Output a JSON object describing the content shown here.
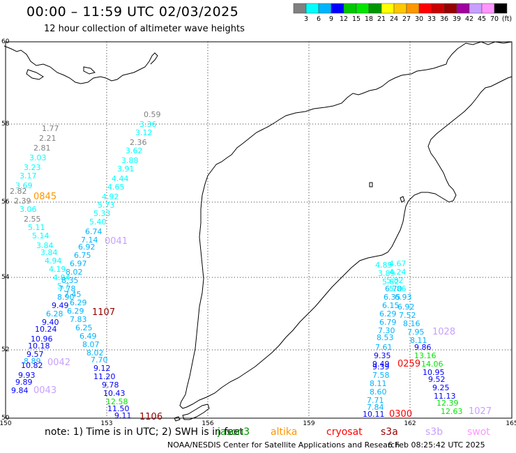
{
  "title": "00:00 – 11:59 UTC 02/03/2025",
  "subtitle": "12 hour collection of altimeter wave heights",
  "legend": {
    "values": [
      "3",
      "6",
      "9",
      "12",
      "15",
      "18",
      "21",
      "24",
      "27",
      "30",
      "33",
      "36",
      "39",
      "42",
      "45",
      "70",
      "(ft)"
    ],
    "colors": [
      "#808080",
      "#00ffff",
      "#00b4ff",
      "#0000ff",
      "#00c800",
      "#00e600",
      "#009600",
      "#ffff00",
      "#ffc800",
      "#ff9600",
      "#ff0000",
      "#c80000",
      "#960000",
      "#a000a0",
      "#c8a0ff",
      "#ff96ff",
      "#000000"
    ]
  },
  "axes": {
    "lon_labels": [
      "150",
      "153",
      "156",
      "159",
      "162",
      "165"
    ],
    "lat_labels": [
      "60",
      "58",
      "56",
      "54",
      "52",
      "50"
    ]
  },
  "note": {
    "prefix": "note:  1) Time is in UTC;  2) SWH is in feet",
    "satellites": [
      {
        "name": "jason3",
        "color": "#009600"
      },
      {
        "name": "altika",
        "color": "#ff9600"
      },
      {
        "name": "cryosat",
        "color": "#ff0000"
      },
      {
        "name": "s3a",
        "color": "#960000"
      },
      {
        "name": "s3b",
        "color": "#c8a0ff"
      },
      {
        "name": "swot",
        "color": "#ff96ff"
      }
    ]
  },
  "credit_left": "NOAA/NESDIS Center for Satellite Applications and Research",
  "credit_right": "6 Feb 08:25:42 UTC 2025",
  "pass_times": [
    {
      "label": "0845",
      "color": "#ff9600"
    },
    {
      "label": "0041",
      "color": "#c8a0ff"
    },
    {
      "label": "1107",
      "color": "#960000"
    },
    {
      "label": "0042",
      "color": "#c8a0ff"
    },
    {
      "label": "0043",
      "color": "#c8a0ff"
    },
    {
      "label": "1106",
      "color": "#960000"
    },
    {
      "label": "1028",
      "color": "#c8a0ff"
    },
    {
      "label": "0259",
      "color": "#ff0000"
    },
    {
      "label": "0300",
      "color": "#ff0000"
    },
    {
      "label": "1027",
      "color": "#c8a0ff"
    }
  ],
  "tracks": [
    {
      "id": "track-a",
      "points": [
        {
          "v": "1.77",
          "c": "#808080"
        },
        {
          "v": "2.21",
          "c": "#808080"
        },
        {
          "v": "2.81",
          "c": "#808080"
        },
        {
          "v": "3.03",
          "c": "#00ffff"
        },
        {
          "v": "3.23",
          "c": "#00ffff"
        },
        {
          "v": "3.17",
          "c": "#00ffff"
        },
        {
          "v": "3.69",
          "c": "#00ffff"
        },
        {
          "v": "2.82",
          "c": "#808080"
        },
        {
          "v": "2.39",
          "c": "#808080"
        },
        {
          "v": "3.06",
          "c": "#00ffff"
        },
        {
          "v": "2.55",
          "c": "#808080"
        },
        {
          "v": "5.11",
          "c": "#00ffff"
        },
        {
          "v": "5.14",
          "c": "#00ffff"
        },
        {
          "v": "3.84",
          "c": "#00ffff"
        },
        {
          "v": "3.84",
          "c": "#00ffff"
        },
        {
          "v": "4.94",
          "c": "#00ffff"
        },
        {
          "v": "4.19",
          "c": "#00ffff"
        },
        {
          "v": "4.84",
          "c": "#00ffff"
        },
        {
          "v": "5.7",
          "c": "#00ffff"
        },
        {
          "v": "7.78",
          "c": "#00b4ff"
        },
        {
          "v": "8.90",
          "c": "#00b4ff"
        },
        {
          "v": "9.49",
          "c": "#0000ff"
        },
        {
          "v": "6.28",
          "c": "#00b4ff"
        },
        {
          "v": "9.40",
          "c": "#0000ff"
        },
        {
          "v": "10.24",
          "c": "#0000ff"
        },
        {
          "v": "10.96",
          "c": "#0000ff"
        },
        {
          "v": "10.18",
          "c": "#0000ff"
        },
        {
          "v": "9.57",
          "c": "#0000ff"
        },
        {
          "v": "8.89",
          "c": "#00b4ff"
        },
        {
          "v": "10.82",
          "c": "#0000ff"
        },
        {
          "v": "9.93",
          "c": "#0000ff"
        },
        {
          "v": "9.89",
          "c": "#0000ff"
        },
        {
          "v": "9.84",
          "c": "#0000ff"
        }
      ]
    },
    {
      "id": "track-b",
      "points": [
        {
          "v": "0.59",
          "c": "#808080"
        },
        {
          "v": "3.36",
          "c": "#00ffff"
        },
        {
          "v": "3.12",
          "c": "#00ffff"
        },
        {
          "v": "2.36",
          "c": "#808080"
        },
        {
          "v": "3.62",
          "c": "#00ffff"
        },
        {
          "v": "3.88",
          "c": "#00ffff"
        },
        {
          "v": "3.91",
          "c": "#00ffff"
        },
        {
          "v": "4.44",
          "c": "#00ffff"
        },
        {
          "v": "4.65",
          "c": "#00ffff"
        },
        {
          "v": "4.92",
          "c": "#00ffff"
        },
        {
          "v": "5.73",
          "c": "#00ffff"
        },
        {
          "v": "5.33",
          "c": "#00ffff"
        },
        {
          "v": "5.40",
          "c": "#00ffff"
        },
        {
          "v": "6.74",
          "c": "#00b4ff"
        },
        {
          "v": "7.14",
          "c": "#00b4ff"
        },
        {
          "v": "6.92",
          "c": "#00b4ff"
        },
        {
          "v": "6.75",
          "c": "#00b4ff"
        },
        {
          "v": "6.97",
          "c": "#00b4ff"
        },
        {
          "v": "8.02",
          "c": "#00b4ff"
        },
        {
          "v": "8.35",
          "c": "#00b4ff"
        },
        {
          "v": "7.45",
          "c": "#00b4ff"
        },
        {
          "v": "6.29",
          "c": "#00b4ff"
        },
        {
          "v": "6.29",
          "c": "#00b4ff"
        },
        {
          "v": "7.83",
          "c": "#00b4ff"
        },
        {
          "v": "6.25",
          "c": "#00b4ff"
        },
        {
          "v": "6.49",
          "c": "#00b4ff"
        },
        {
          "v": "8.07",
          "c": "#00b4ff"
        },
        {
          "v": "8.02",
          "c": "#00b4ff"
        },
        {
          "v": "7.70",
          "c": "#00b4ff"
        },
        {
          "v": "9.12",
          "c": "#0000ff"
        },
        {
          "v": "11.20",
          "c": "#0000ff"
        },
        {
          "v": "9.78",
          "c": "#0000ff"
        },
        {
          "v": "10.43",
          "c": "#0000ff"
        },
        {
          "v": "12.58",
          "c": "#00e600"
        },
        {
          "v": "11.50",
          "c": "#0000ff"
        },
        {
          "v": "9.11",
          "c": "#0000ff"
        }
      ]
    },
    {
      "id": "track-c",
      "points": [
        {
          "v": "4.89",
          "c": "#00ffff"
        },
        {
          "v": "3.89",
          "c": "#00ffff"
        },
        {
          "v": "5.82",
          "c": "#00ffff"
        },
        {
          "v": "6.70",
          "c": "#00b4ff"
        },
        {
          "v": "6.35",
          "c": "#00b4ff"
        },
        {
          "v": "6.15",
          "c": "#00b4ff"
        },
        {
          "v": "6.29",
          "c": "#00b4ff"
        },
        {
          "v": "6.79",
          "c": "#00b4ff"
        },
        {
          "v": "7.30",
          "c": "#00b4ff"
        },
        {
          "v": "8.53",
          "c": "#00b4ff"
        },
        {
          "v": "7.61",
          "c": "#00b4ff"
        },
        {
          "v": "9.35",
          "c": "#0000ff"
        },
        {
          "v": "9.49",
          "c": "#0000ff"
        },
        {
          "v": "9.39",
          "c": "#0000ff"
        },
        {
          "v": "7.58",
          "c": "#00b4ff"
        },
        {
          "v": "8.11",
          "c": "#00b4ff"
        },
        {
          "v": "8.60",
          "c": "#00b4ff"
        },
        {
          "v": "7.71",
          "c": "#00b4ff"
        },
        {
          "v": "7.84",
          "c": "#00b4ff"
        },
        {
          "v": "10.11",
          "c": "#0000ff"
        }
      ]
    },
    {
      "id": "track-d",
      "points": [
        {
          "v": "4.67",
          "c": "#00ffff"
        },
        {
          "v": "4.24",
          "c": "#00ffff"
        },
        {
          "v": "5.82",
          "c": "#00ffff"
        },
        {
          "v": "5.86",
          "c": "#00ffff"
        },
        {
          "v": "6.93",
          "c": "#00b4ff"
        },
        {
          "v": "6.92",
          "c": "#00b4ff"
        },
        {
          "v": "7.52",
          "c": "#00b4ff"
        },
        {
          "v": "8.16",
          "c": "#00b4ff"
        },
        {
          "v": "7.95",
          "c": "#00b4ff"
        },
        {
          "v": "8.11",
          "c": "#00b4ff"
        },
        {
          "v": "9.86",
          "c": "#0000ff"
        },
        {
          "v": "13.16",
          "c": "#00e600"
        },
        {
          "v": "14.06",
          "c": "#00e600"
        },
        {
          "v": "10.95",
          "c": "#0000ff"
        },
        {
          "v": "9.52",
          "c": "#0000ff"
        },
        {
          "v": "9.25",
          "c": "#0000ff"
        },
        {
          "v": "11.13",
          "c": "#0000ff"
        },
        {
          "v": "12.39",
          "c": "#00e600"
        },
        {
          "v": "12.63",
          "c": "#00e600"
        }
      ]
    }
  ]
}
